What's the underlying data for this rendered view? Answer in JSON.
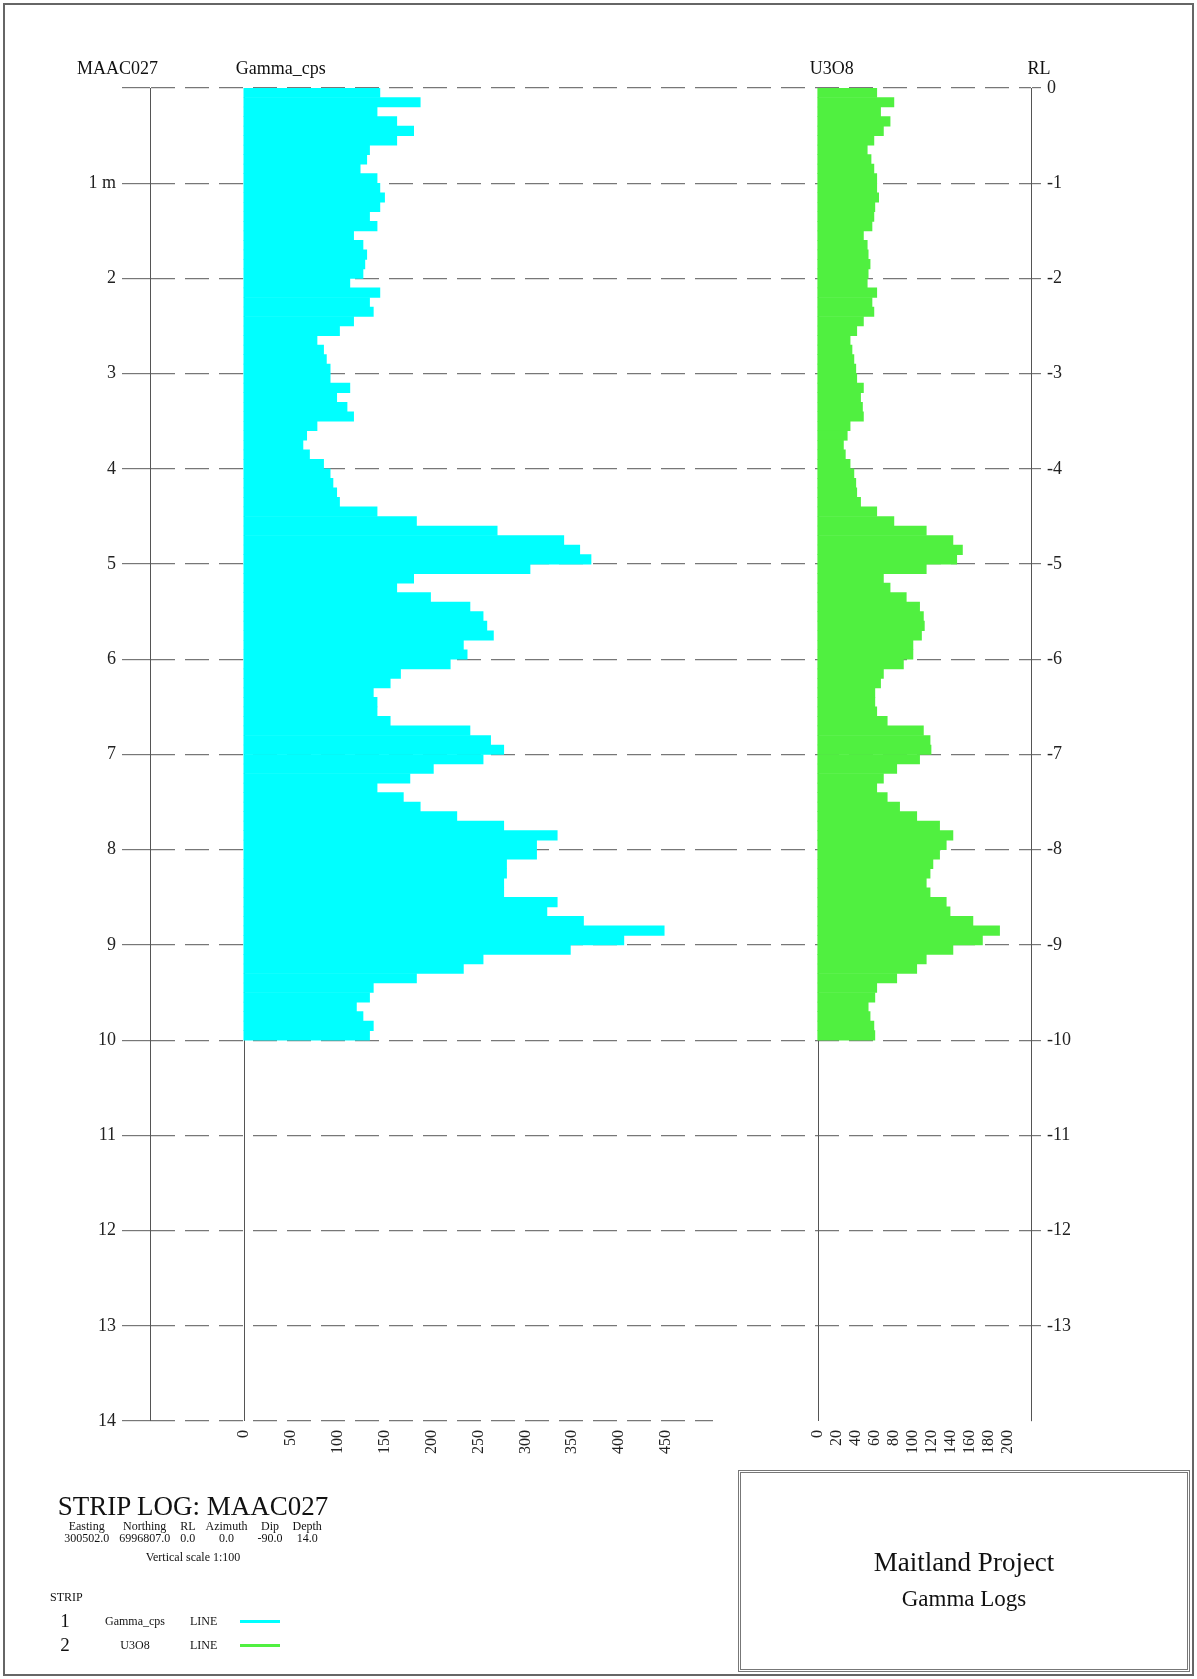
{
  "chart_data": [
    {
      "type": "bar",
      "orientation": "horizontal",
      "title": "STRIP LOG: MAAC027",
      "ylabel": "MAAC027",
      "xlabel": "Gamma_cps",
      "legend": "bottom left",
      "legend_title": "STRIP",
      "grid": "y",
      "annotations": [
        "Easting Northing RL Azimuth Dip Depth",
        "300502.0 6996807.0 0.0 0.0 -90.0 14.0",
        "Vertical scale 1:100",
        "1",
        "LINE"
      ],
      "x": [
        0.05,
        0.15,
        0.25,
        0.35,
        0.45,
        0.55,
        0.65,
        0.75,
        0.85,
        0.95,
        1.05,
        1.15,
        1.25,
        1.35,
        1.45,
        1.55,
        1.65,
        1.75,
        1.85,
        1.95,
        2.05,
        2.15,
        2.25,
        2.35,
        2.45,
        2.55,
        2.65,
        2.75,
        2.85,
        2.95,
        3.05,
        3.15,
        3.25,
        3.35,
        3.45,
        3.55,
        3.65,
        3.75,
        3.85,
        3.95,
        4.05,
        4.15,
        4.25,
        4.35,
        4.45,
        4.55,
        4.65,
        4.75,
        4.85,
        4.95,
        5.05,
        5.15,
        5.25,
        5.35,
        5.45,
        5.55,
        5.65,
        5.75,
        5.85,
        5.95,
        6.05,
        6.15,
        6.25,
        6.35,
        6.45,
        6.55,
        6.65,
        6.75,
        6.85,
        6.95,
        7.05,
        7.15,
        7.25,
        7.35,
        7.45,
        7.55,
        7.65,
        7.75,
        7.85,
        7.95,
        8.05,
        8.15,
        8.25,
        8.35,
        8.45,
        8.55,
        8.65,
        8.75,
        8.85,
        8.95,
        9.05,
        9.15,
        9.25,
        9.35,
        9.45,
        9.55,
        9.65,
        9.75,
        9.85,
        9.95
      ],
      "series": [
        {
          "name": "Gamma_cps",
          "color": "#00ffff",
          "values": [
            145,
            188,
            142,
            163,
            181,
            163,
            134,
            131,
            124,
            142,
            145,
            150,
            145,
            134,
            142,
            117,
            127,
            131,
            129,
            127,
            113,
            145,
            134,
            138,
            117,
            102,
            78,
            85,
            88,
            92,
            92,
            113,
            99,
            110,
            117,
            78,
            67,
            63,
            70,
            85,
            92,
            95,
            99,
            102,
            142,
            184,
            270,
            341,
            358,
            370,
            305,
            181,
            163,
            199,
            241,
            255,
            259,
            266,
            234,
            238,
            220,
            167,
            156,
            138,
            142,
            142,
            156,
            241,
            263,
            277,
            255,
            202,
            177,
            142,
            170,
            188,
            227,
            277,
            334,
            312,
            312,
            280,
            280,
            277,
            277,
            334,
            323,
            362,
            448,
            405,
            348,
            255,
            234,
            184,
            138,
            134,
            120,
            127,
            138,
            134
          ]
        }
      ],
      "xlim": [
        -100,
        500
      ],
      "xticks": [
        0,
        50,
        100,
        150,
        200,
        250,
        300,
        350,
        400,
        450
      ],
      "ylim": [
        14,
        0
      ],
      "yticks": [
        {
          "value": 0,
          "label": null
        },
        {
          "value": 1,
          "label": "1 m"
        },
        2,
        3,
        4,
        5,
        6,
        7,
        8,
        9,
        10,
        11,
        12,
        13,
        14
      ]
    },
    {
      "type": "bar",
      "orientation": "horizontal",
      "title": "Maitland Project",
      "subtitle": "Gamma Logs",
      "ylabel": "RL",
      "xlabel": "U3O8",
      "legend": "bottom left",
      "grid": "y",
      "annotations": [
        "2",
        "LINE"
      ],
      "x": [
        -0.05,
        -0.15,
        -0.25,
        -0.35,
        -0.45,
        -0.55,
        -0.65,
        -0.75,
        -0.85,
        -0.95,
        -1.05,
        -1.15,
        -1.25,
        -1.35,
        -1.45,
        -1.55,
        -1.65,
        -1.75,
        -1.85,
        -1.95,
        -2.05,
        -2.15,
        -2.25,
        -2.35,
        -2.45,
        -2.55,
        -2.65,
        -2.75,
        -2.85,
        -2.95,
        -3.05,
        -3.15,
        -3.25,
        -3.35,
        -3.45,
        -3.55,
        -3.65,
        -3.75,
        -3.85,
        -3.95,
        -4.05,
        -4.15,
        -4.25,
        -4.35,
        -4.45,
        -4.55,
        -4.65,
        -4.75,
        -4.85,
        -4.95,
        -5.05,
        -5.15,
        -5.25,
        -5.35,
        -5.45,
        -5.55,
        -5.65,
        -5.75,
        -5.85,
        -5.95,
        -6.05,
        -6.15,
        -6.25,
        -6.35,
        -6.45,
        -6.55,
        -6.65,
        -6.75,
        -6.85,
        -6.95,
        -7.05,
        -7.15,
        -7.25,
        -7.35,
        -7.45,
        -7.55,
        -7.65,
        -7.75,
        -7.85,
        -7.95,
        -8.05,
        -8.15,
        -8.25,
        -8.35,
        -8.45,
        -8.55,
        -8.65,
        -8.75,
        -8.85,
        -8.95,
        -9.05,
        -9.15,
        -9.25,
        -9.35,
        -9.45,
        -9.55,
        -9.65,
        -9.75,
        -9.85,
        -9.95
      ],
      "series": [
        {
          "name": "U3O8",
          "color": "#50f040",
          "values": [
            62,
            80,
            66,
            76,
            69,
            59,
            52,
            56,
            59,
            62,
            62,
            64,
            60,
            59,
            57,
            48,
            52,
            53,
            55,
            53,
            52,
            62,
            57,
            59,
            48,
            41,
            34,
            36,
            38,
            40,
            41,
            48,
            45,
            47,
            48,
            34,
            31,
            27,
            29,
            34,
            38,
            40,
            41,
            45,
            62,
            80,
            114,
            142,
            152,
            146,
            114,
            69,
            76,
            93,
            107,
            111,
            112,
            109,
            100,
            100,
            90,
            69,
            66,
            60,
            60,
            62,
            73,
            111,
            118,
            119,
            107,
            83,
            69,
            62,
            73,
            86,
            104,
            128,
            142,
            135,
            128,
            121,
            118,
            114,
            118,
            135,
            139,
            163,
            191,
            173,
            142,
            114,
            104,
            83,
            62,
            60,
            53,
            55,
            59,
            60
          ]
        }
      ],
      "xlim": [
        -110,
        224
      ],
      "xticks": [
        0,
        20,
        40,
        60,
        80,
        100,
        120,
        140,
        160,
        180,
        200
      ],
      "ylim": [
        -14,
        0
      ],
      "yticks": [
        0,
        -1,
        -2,
        -3,
        -4,
        -5,
        -6,
        -7,
        -8,
        -9,
        -10,
        -11,
        -12,
        -13
      ]
    }
  ]
}
